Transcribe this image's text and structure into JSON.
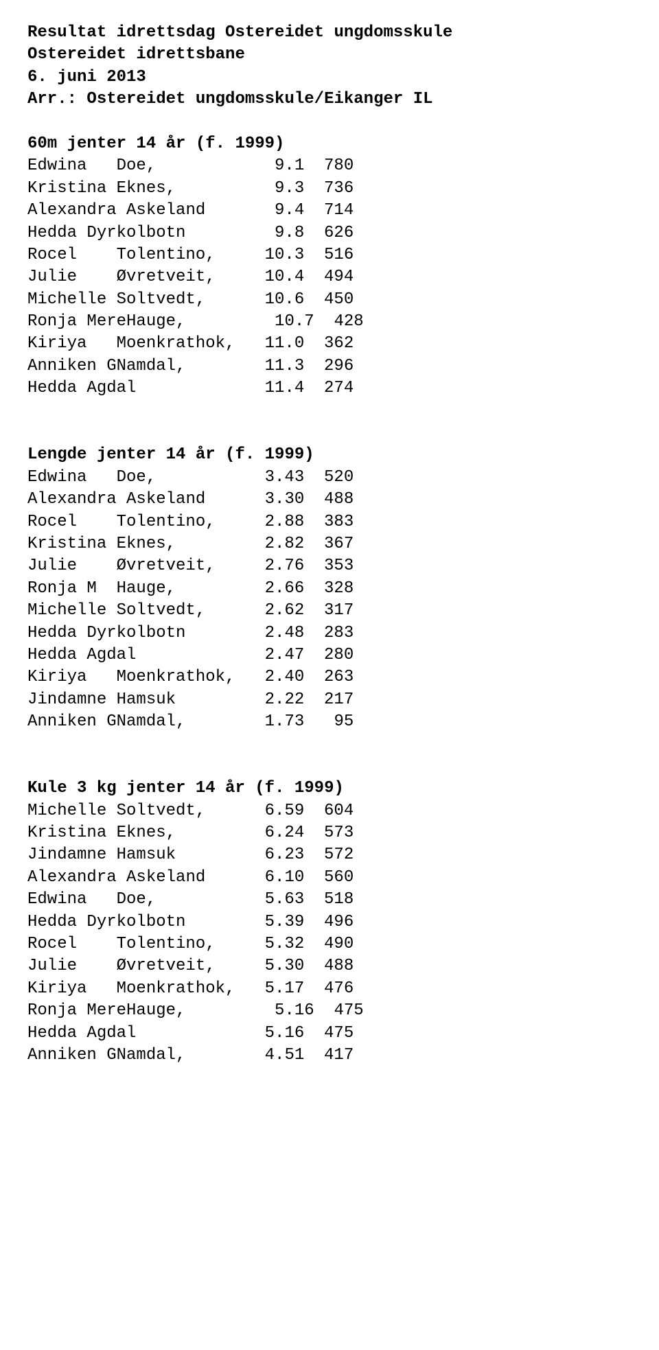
{
  "header": {
    "title": "Resultat idrettsdag Ostereidet ungdomsskule",
    "venue": "Ostereidet idrettsbane",
    "date": "6. juni 2013",
    "organizer": "Arr.: Ostereidet ungdomsskule/Eikanger IL"
  },
  "sections": [
    {
      "title": "60m jenter 14 år (f. 1999)",
      "rows": [
        {
          "first": "Edwina",
          "last": "Doe,",
          "result": "9.1",
          "score": "780"
        },
        {
          "first": "Kristina",
          "last": "Eknes,",
          "result": "9.3",
          "score": "736"
        },
        {
          "first": "Alexandra",
          "last": "Askeland",
          "result": "9.4",
          "score": "714"
        },
        {
          "first": "Hedda",
          "last": "Dyrkolbotn",
          "result": "9.8",
          "score": "626"
        },
        {
          "first": "Rocel",
          "last": "Tolentino,",
          "result": "10.3",
          "score": "516"
        },
        {
          "first": "Julie",
          "last": "Øvretveit,",
          "result": "10.4",
          "score": "494"
        },
        {
          "first": "Michelle",
          "last": "Soltvedt,",
          "result": "10.6",
          "score": "450"
        },
        {
          "first": "Ronja Mere",
          "last": "Hauge,",
          "result": "10.7",
          "score": "428"
        },
        {
          "first": "Kiriya",
          "last": "Moenkrathok,",
          "result": "11.0",
          "score": "362"
        },
        {
          "first": "Anniken G",
          "last": "Namdal,",
          "result": "11.3",
          "score": "296"
        },
        {
          "first": "Hedda",
          "last": "Agdal",
          "result": "11.4",
          "score": "274"
        }
      ]
    },
    {
      "title": "Lengde jenter 14 år (f. 1999)",
      "rows": [
        {
          "first": "Edwina",
          "last": "Doe,",
          "result": "3.43",
          "score": "520"
        },
        {
          "first": "Alexandra",
          "last": "Askeland",
          "result": "3.30",
          "score": "488"
        },
        {
          "first": "Rocel",
          "last": "Tolentino,",
          "result": "2.88",
          "score": "383"
        },
        {
          "first": "Kristina",
          "last": "Eknes,",
          "result": "2.82",
          "score": "367"
        },
        {
          "first": "Julie",
          "last": "Øvretveit,",
          "result": "2.76",
          "score": "353"
        },
        {
          "first": "Ronja M",
          "last": "Hauge,",
          "result": "2.66",
          "score": "328"
        },
        {
          "first": "Michelle",
          "last": "Soltvedt,",
          "result": "2.62",
          "score": "317"
        },
        {
          "first": "Hedda",
          "last": "Dyrkolbotn",
          "result": "2.48",
          "score": "283"
        },
        {
          "first": "Hedda",
          "last": "Agdal",
          "result": "2.47",
          "score": "280"
        },
        {
          "first": "Kiriya",
          "last": "Moenkrathok,",
          "result": "2.40",
          "score": "263"
        },
        {
          "first": "Jindamne",
          "last": "Hamsuk",
          "result": "2.22",
          "score": "217"
        },
        {
          "first": "Anniken G",
          "last": "Namdal,",
          "result": "1.73",
          "score": "95"
        }
      ]
    },
    {
      "title": "Kule 3 kg jenter 14 år (f. 1999)",
      "rows": [
        {
          "first": "Michelle",
          "last": "Soltvedt,",
          "result": "6.59",
          "score": "604"
        },
        {
          "first": "Kristina",
          "last": "Eknes,",
          "result": "6.24",
          "score": "573"
        },
        {
          "first": "Jindamne",
          "last": "Hamsuk",
          "result": "6.23",
          "score": "572"
        },
        {
          "first": "Alexandra",
          "last": "Askeland",
          "result": "6.10",
          "score": "560"
        },
        {
          "first": "Edwina",
          "last": "Doe,",
          "result": "5.63",
          "score": "518"
        },
        {
          "first": "Hedda",
          "last": "Dyrkolbotn",
          "result": "5.39",
          "score": "496"
        },
        {
          "first": "Rocel",
          "last": "Tolentino,",
          "result": "5.32",
          "score": "490"
        },
        {
          "first": "Julie",
          "last": "Øvretveit,",
          "result": "5.30",
          "score": "488"
        },
        {
          "first": "Kiriya",
          "last": "Moenkrathok,",
          "result": "5.17",
          "score": "476"
        },
        {
          "first": "Ronja Mere",
          "last": "Hauge,",
          "result": "5.16",
          "score": "475"
        },
        {
          "first": "Hedda",
          "last": "Agdal",
          "result": "5.16",
          "score": "475"
        },
        {
          "first": "Anniken G",
          "last": "Namdal,",
          "result": "4.51",
          "score": "417"
        }
      ]
    }
  ],
  "noJoinLast": [
    "Dyrkolbotn",
    "Askeland",
    "Agdal",
    "Hamsuk"
  ]
}
